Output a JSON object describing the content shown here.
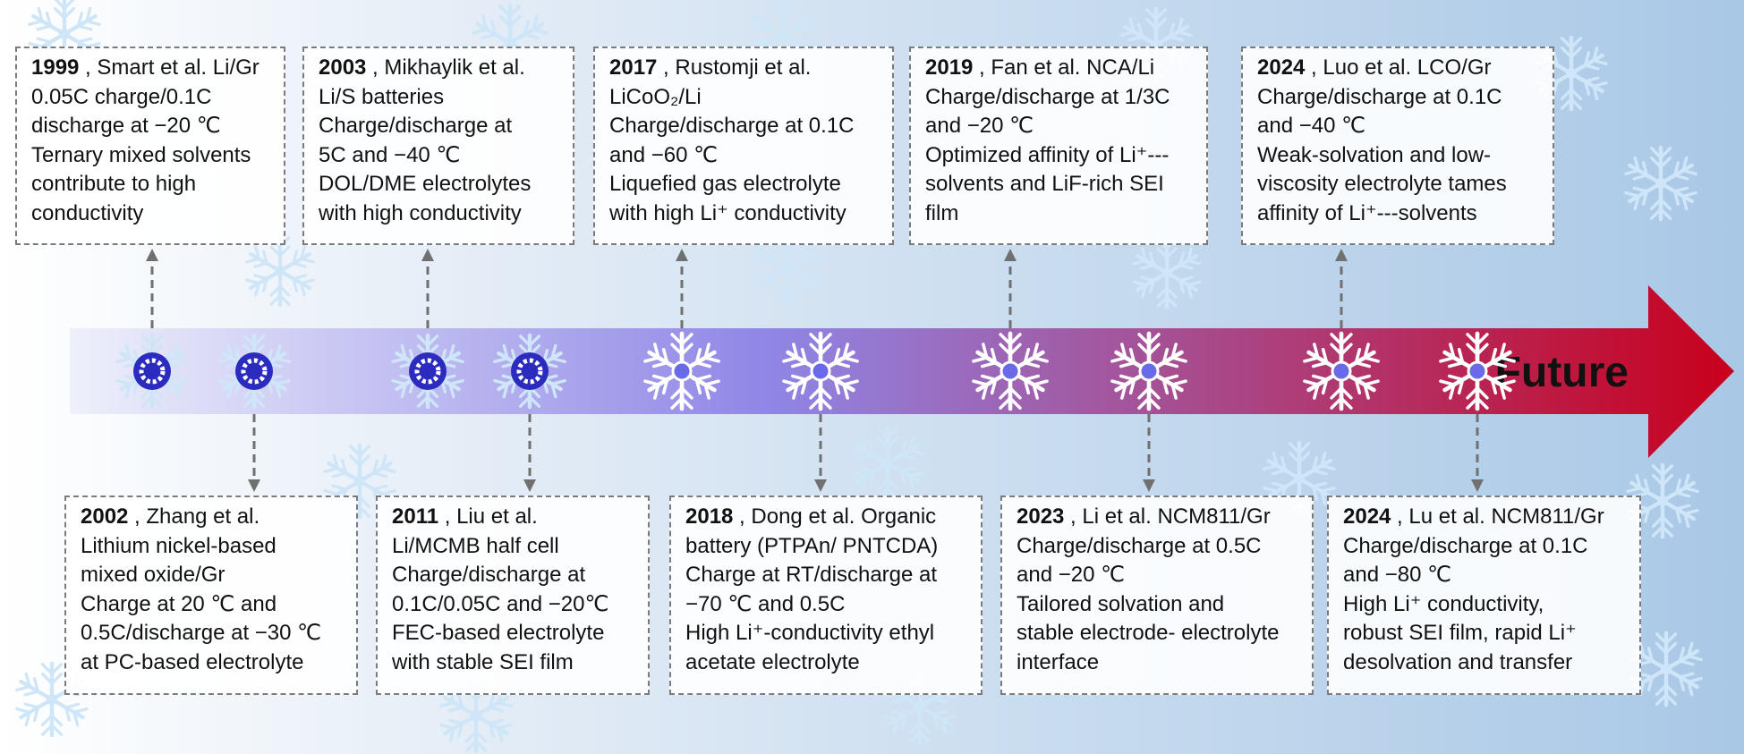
{
  "colors": {
    "arrow_start": "#eef0fb",
    "arrow_mid": "#8f86e6",
    "arrow_end": "#c8001c",
    "snow_light": "#cfe6f8",
    "snow_node": "#ffffff",
    "node_dark": "#2b2bbf",
    "connector": "#707070"
  },
  "arrow_label": "Future",
  "milestones": [
    {
      "position": "top",
      "year": "1999",
      "header": " , Smart et al. Li/Gr",
      "lines": [
        "0.05C charge/0.1C",
        "discharge at −20 ℃",
        "Ternary mixed solvents",
        "contribute to high",
        "conductivity"
      ]
    },
    {
      "position": "bottom",
      "year": "2002",
      "header": " , Zhang et al.",
      "lines": [
        "Lithium nickel-based",
        "mixed oxide/Gr",
        "Charge at 20 ℃ and",
        "0.5C/discharge at −30 ℃",
        "at PC-based electrolyte"
      ]
    },
    {
      "position": "top",
      "year": "2003",
      "header": " , Mikhaylik et al.",
      "lines": [
        "Li/S batteries",
        "Charge/discharge at",
        "5C and −40 ℃",
        "DOL/DME electrolytes",
        "with high conductivity"
      ]
    },
    {
      "position": "bottom",
      "year": "2011",
      "header": " , Liu et al.",
      "lines": [
        "Li/MCMB half cell",
        "Charge/discharge at",
        "0.1C/0.05C and −20℃",
        "FEC-based electrolyte",
        "with stable SEI film"
      ]
    },
    {
      "position": "top",
      "year": "2017",
      "header": " , Rustomji et al.",
      "lines": [
        "LiCoO₂/Li",
        "Charge/discharge at 0.1C",
        "and −60 ℃",
        "Liquefied gas electrolyte",
        "with high Li⁺ conductivity"
      ]
    },
    {
      "position": "bottom",
      "year": "2018",
      "header": " , Dong et al. Organic",
      "lines": [
        "battery (PTPAn/ PNTCDA)",
        "Charge at RT/discharge at",
        "−70 ℃ and 0.5C",
        "High Li⁺-conductivity ethyl",
        "acetate electrolyte"
      ]
    },
    {
      "position": "top",
      "year": "2019",
      "header": " , Fan et al. NCA/Li",
      "lines": [
        "Charge/discharge at 1/3C",
        "and −20 ℃",
        "Optimized affinity of Li⁺---",
        "solvents and LiF-rich SEI",
        "film"
      ]
    },
    {
      "position": "bottom",
      "year": "2023",
      "header": " , Li et al. NCM811/Gr",
      "lines": [
        "Charge/discharge at 0.5C",
        "and −20 ℃",
        "Tailored solvation and",
        "stable electrode- electrolyte",
        "interface"
      ]
    },
    {
      "position": "top",
      "year": "2024",
      "header": " , Luo et al. LCO/Gr",
      "lines": [
        "Charge/discharge at 0.1C",
        "and −40 ℃",
        "Weak-solvation and low-",
        "viscosity electrolyte tames",
        "affinity of Li⁺---solvents"
      ]
    },
    {
      "position": "bottom",
      "year": "2024",
      "header": " , Lu et al. NCM811/Gr",
      "lines": [
        "Charge/discharge at 0.1C",
        "and −80 ℃",
        "High Li⁺ conductivity,",
        "robust SEI film, rapid Li⁺",
        "desolvation and transfer"
      ]
    }
  ]
}
